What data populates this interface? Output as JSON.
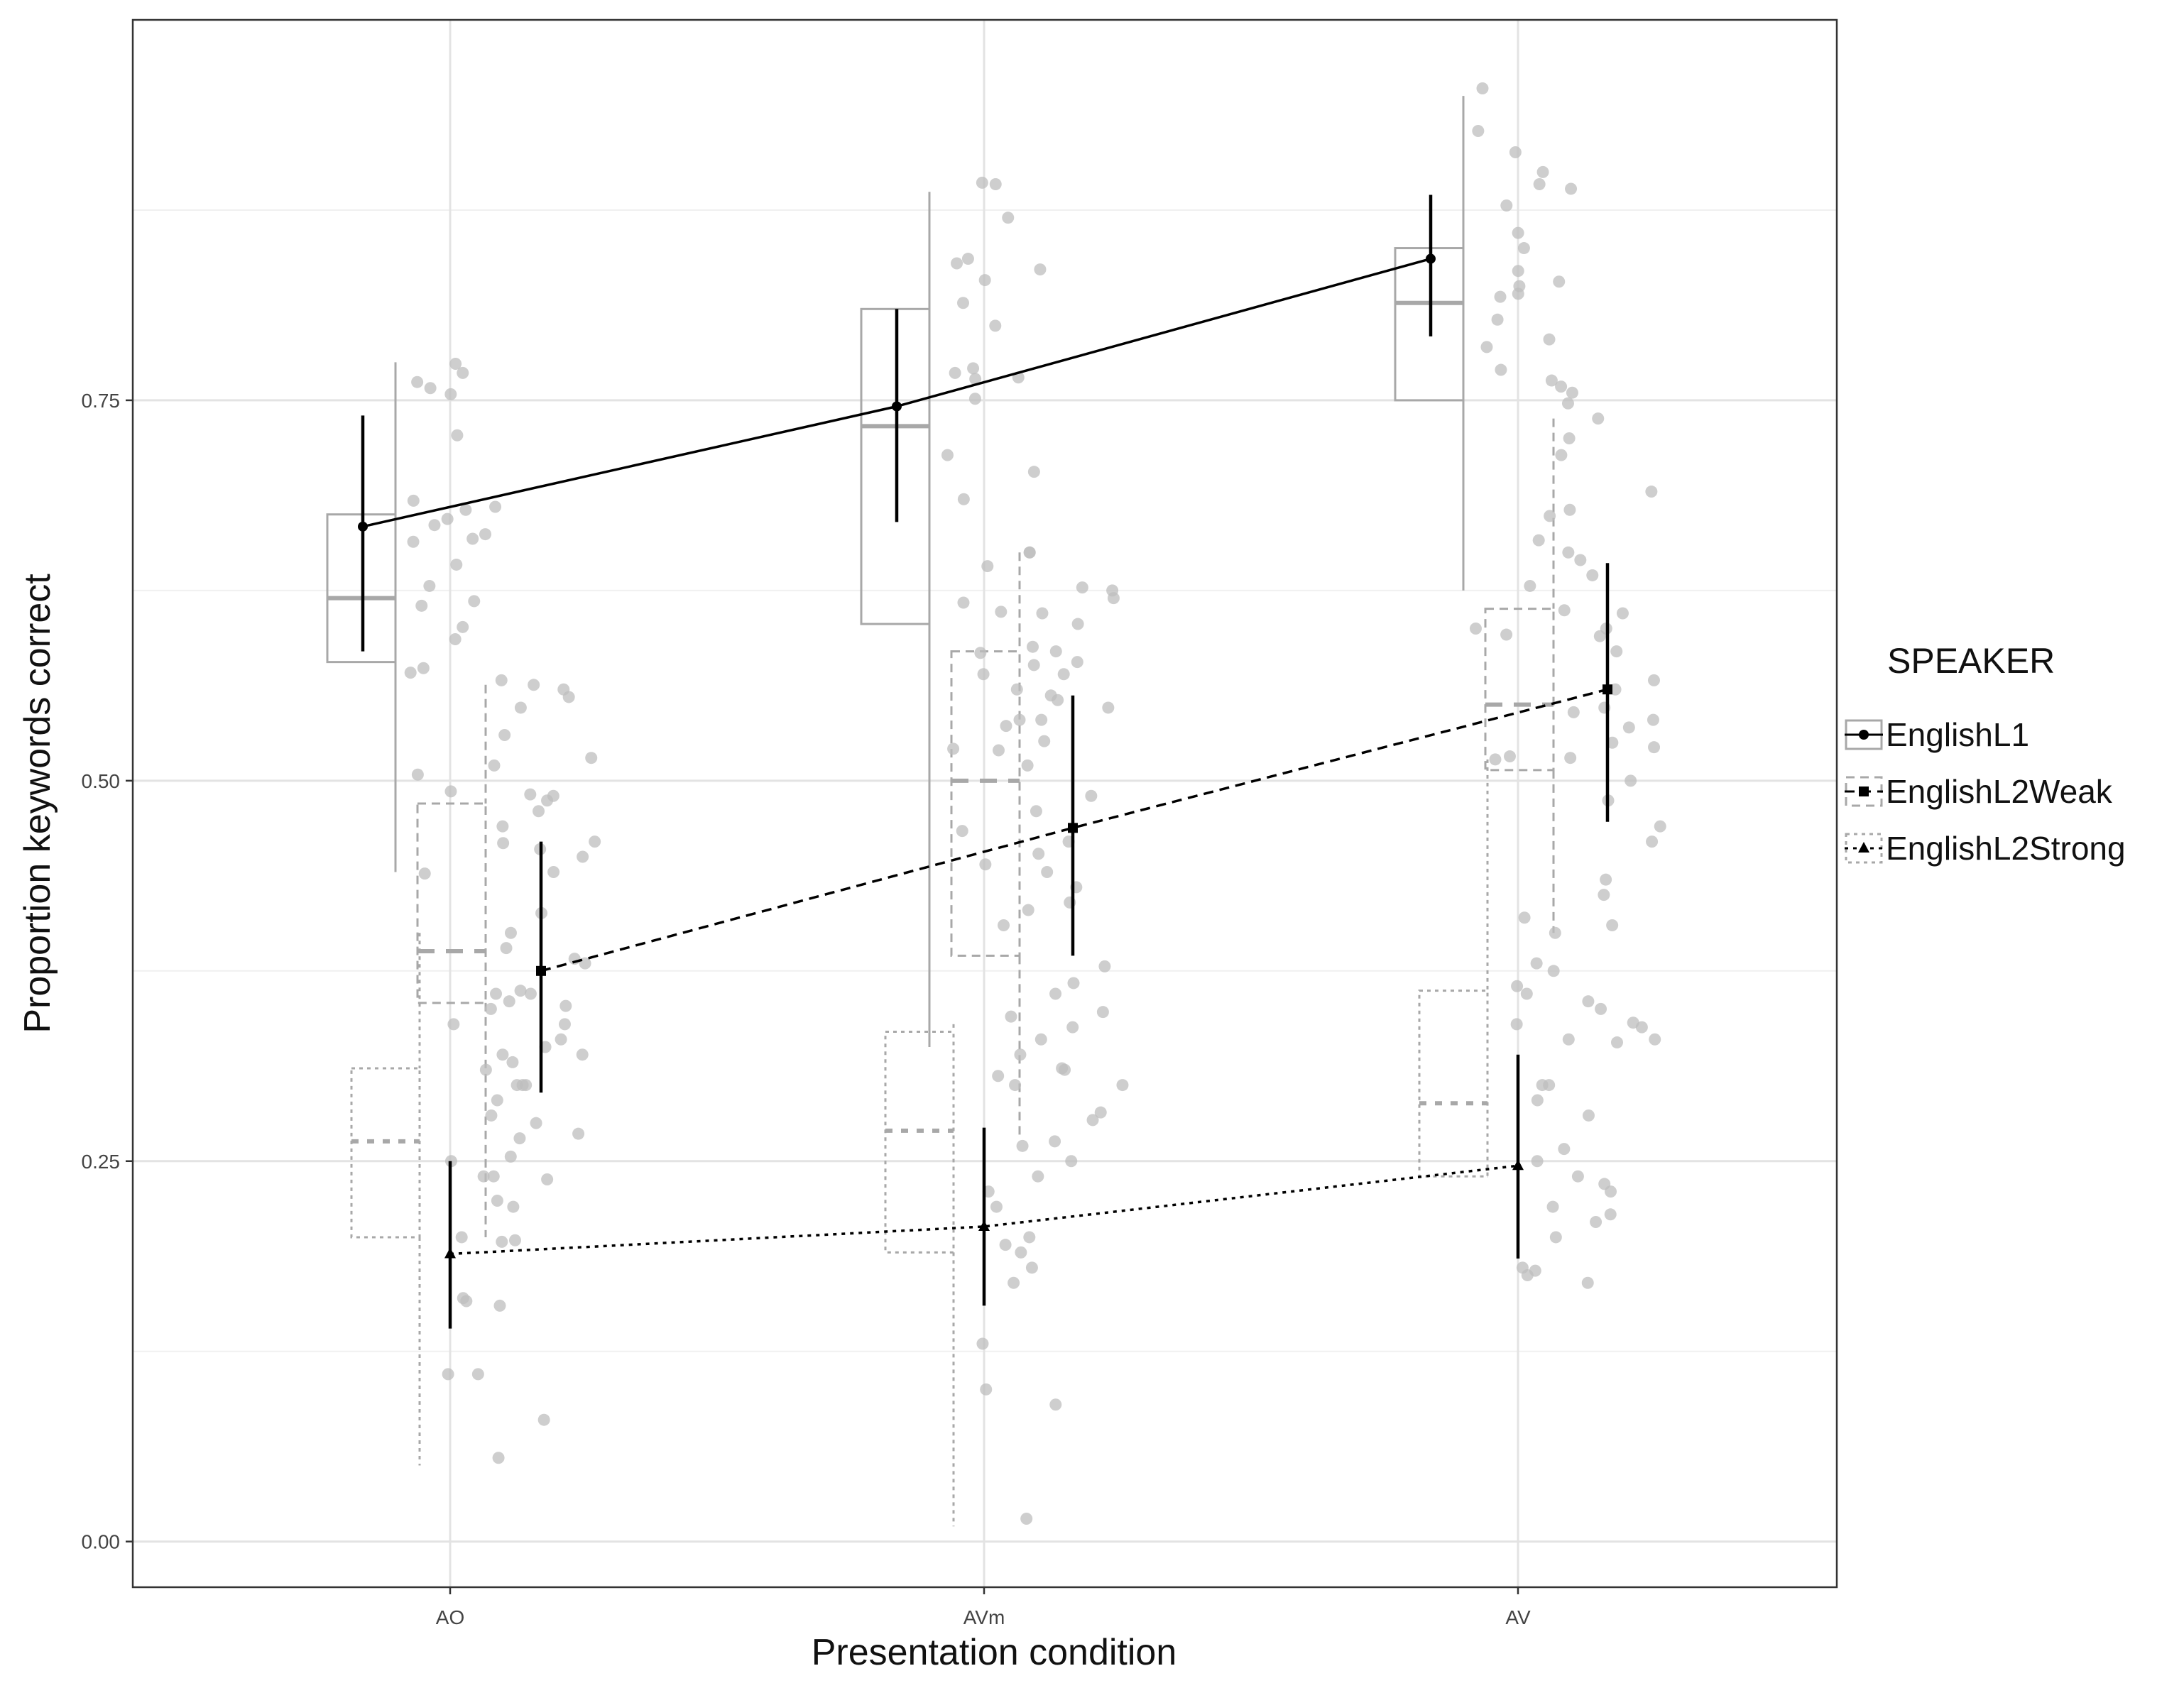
{
  "chart_data": {
    "type": "line",
    "xlabel": "Presentation condition",
    "ylabel": "Proportion keywords correct",
    "categories": [
      "AO",
      "AVm",
      "AV"
    ],
    "ylim": [
      -0.03,
      1.0
    ],
    "yticks": [
      0.0,
      0.25,
      0.5,
      0.75
    ],
    "ytick_labels": [
      "0.00",
      "0.25",
      "0.50",
      "0.75"
    ],
    "grid": true,
    "legend": {
      "title": "SPEAKER",
      "placement": "right"
    },
    "series": [
      {
        "name": "EnglishL1",
        "marker": "circle",
        "line": "solid",
        "values": [
          0.667,
          0.746,
          0.843
        ],
        "error_low": [
          0.585,
          0.67,
          0.792
        ],
        "error_high": [
          0.74,
          0.81,
          0.885
        ],
        "box": [
          {
            "lower_whisker": 0.44,
            "q1": 0.578,
            "median": 0.62,
            "q3": 0.675,
            "upper_whisker": 0.775
          },
          {
            "lower_whisker": 0.325,
            "q1": 0.603,
            "median": 0.733,
            "q3": 0.81,
            "upper_whisker": 0.887
          },
          {
            "lower_whisker": 0.625,
            "q1": 0.75,
            "median": 0.814,
            "q3": 0.85,
            "upper_whisker": 0.95
          }
        ]
      },
      {
        "name": "EnglishL2Weak",
        "marker": "square",
        "line": "dashed",
        "values": [
          0.375,
          0.469,
          0.56
        ],
        "error_low": [
          0.295,
          0.385,
          0.473
        ],
        "error_high": [
          0.46,
          0.556,
          0.643
        ],
        "box": [
          {
            "lower_whisker": 0.2,
            "q1": 0.354,
            "median": 0.388,
            "q3": 0.485,
            "upper_whisker": 0.563
          },
          {
            "lower_whisker": 0.265,
            "q1": 0.385,
            "median": 0.5,
            "q3": 0.585,
            "upper_whisker": 0.65
          },
          {
            "lower_whisker": 0.4,
            "q1": 0.507,
            "median": 0.55,
            "q3": 0.613,
            "upper_whisker": 0.738
          }
        ]
      },
      {
        "name": "EnglishL2Strong",
        "marker": "triangle",
        "line": "dotted",
        "values": [
          0.189,
          0.207,
          0.247
        ],
        "error_low": [
          0.14,
          0.155,
          0.186
        ],
        "error_high": [
          0.25,
          0.272,
          0.32
        ],
        "box": [
          {
            "lower_whisker": 0.05,
            "q1": 0.2,
            "median": 0.263,
            "q3": 0.311,
            "upper_whisker": 0.4
          },
          {
            "lower_whisker": 0.01,
            "q1": 0.19,
            "median": 0.27,
            "q3": 0.335,
            "upper_whisker": 0.34
          },
          {
            "lower_whisker": 0.24,
            "q1": 0.24,
            "median": 0.288,
            "q3": 0.362,
            "upper_whisker": 0.514
          }
        ]
      }
    ],
    "points": [
      {
        "series": "EnglishL1",
        "category": "AO",
        "y": [
          0.774,
          0.768,
          0.762,
          0.758,
          0.754,
          0.727,
          0.684,
          0.68,
          0.678,
          0.672,
          0.668,
          0.662,
          0.659,
          0.657,
          0.642,
          0.628,
          0.618,
          0.615,
          0.601,
          0.593,
          0.574,
          0.571,
          0.566,
          0.53,
          0.504,
          0.493,
          0.459,
          0.439
        ]
      },
      {
        "series": "EnglishL1",
        "category": "AVm",
        "y": [
          0.893,
          0.892,
          0.87,
          0.843,
          0.84,
          0.836,
          0.829,
          0.814,
          0.799,
          0.771,
          0.768,
          0.765,
          0.764,
          0.751,
          0.714,
          0.703,
          0.685,
          0.65,
          0.641,
          0.617,
          0.611,
          0.584,
          0.56,
          0.536,
          0.521,
          0.467,
          0.445
        ]
      },
      {
        "series": "EnglishL1",
        "category": "AV",
        "y": [
          0.955,
          0.927,
          0.913,
          0.9,
          0.892,
          0.889,
          0.878,
          0.86,
          0.85,
          0.835,
          0.828,
          0.825,
          0.82,
          0.818,
          0.803,
          0.79,
          0.785,
          0.77,
          0.763,
          0.759,
          0.755,
          0.748,
          0.714,
          0.674,
          0.658,
          0.628,
          0.6,
          0.596,
          0.516,
          0.514
        ]
      },
      {
        "series": "EnglishL2Weak",
        "category": "AO",
        "y": [
          0.563,
          0.56,
          0.555,
          0.548,
          0.515,
          0.51,
          0.491,
          0.49,
          0.48,
          0.47,
          0.46,
          0.455,
          0.45,
          0.44,
          0.413,
          0.39,
          0.383,
          0.38,
          0.362,
          0.36,
          0.355,
          0.352,
          0.34,
          0.33,
          0.32,
          0.3,
          0.268,
          0.253,
          0.224,
          0.197
        ]
      },
      {
        "series": "EnglishL2Weak",
        "category": "AVm",
        "y": [
          0.65,
          0.627,
          0.625,
          0.62,
          0.61,
          0.603,
          0.588,
          0.585,
          0.578,
          0.576,
          0.57,
          0.556,
          0.553,
          0.548,
          0.54,
          0.526,
          0.51,
          0.49,
          0.48,
          0.46,
          0.452,
          0.43,
          0.42,
          0.415,
          0.378,
          0.367,
          0.348,
          0.311,
          0.3,
          0.282,
          0.277,
          0.263
        ]
      },
      {
        "series": "EnglishL2Weak",
        "category": "AV",
        "y": [
          0.738,
          0.725,
          0.69,
          0.678,
          0.65,
          0.645,
          0.635,
          0.612,
          0.61,
          0.6,
          0.595,
          0.585,
          0.566,
          0.56,
          0.548,
          0.545,
          0.54,
          0.535,
          0.525,
          0.522,
          0.5,
          0.487,
          0.47,
          0.46,
          0.425,
          0.405,
          0.341,
          0.338,
          0.33,
          0.328
        ]
      },
      {
        "series": "EnglishL2Strong",
        "category": "AO",
        "y": [
          0.487,
          0.4,
          0.36,
          0.35,
          0.34,
          0.325,
          0.32,
          0.315,
          0.31,
          0.3,
          0.3,
          0.29,
          0.28,
          0.275,
          0.265,
          0.25,
          0.24,
          0.24,
          0.238,
          0.22,
          0.2,
          0.198,
          0.16,
          0.158,
          0.155,
          0.11,
          0.11,
          0.08,
          0.055
        ]
      },
      {
        "series": "EnglishL2Strong",
        "category": "AVm",
        "y": [
          0.57,
          0.54,
          0.52,
          0.44,
          0.405,
          0.36,
          0.345,
          0.338,
          0.33,
          0.32,
          0.31,
          0.306,
          0.3,
          0.26,
          0.25,
          0.24,
          0.23,
          0.22,
          0.2,
          0.195,
          0.19,
          0.18,
          0.17,
          0.13,
          0.1,
          0.09,
          0.015
        ]
      },
      {
        "series": "EnglishL2Strong",
        "category": "AV",
        "y": [
          0.515,
          0.435,
          0.41,
          0.4,
          0.38,
          0.375,
          0.365,
          0.36,
          0.355,
          0.35,
          0.34,
          0.33,
          0.3,
          0.3,
          0.29,
          0.28,
          0.258,
          0.25,
          0.24,
          0.235,
          0.23,
          0.22,
          0.215,
          0.21,
          0.2,
          0.18,
          0.178,
          0.175,
          0.17
        ]
      }
    ]
  }
}
